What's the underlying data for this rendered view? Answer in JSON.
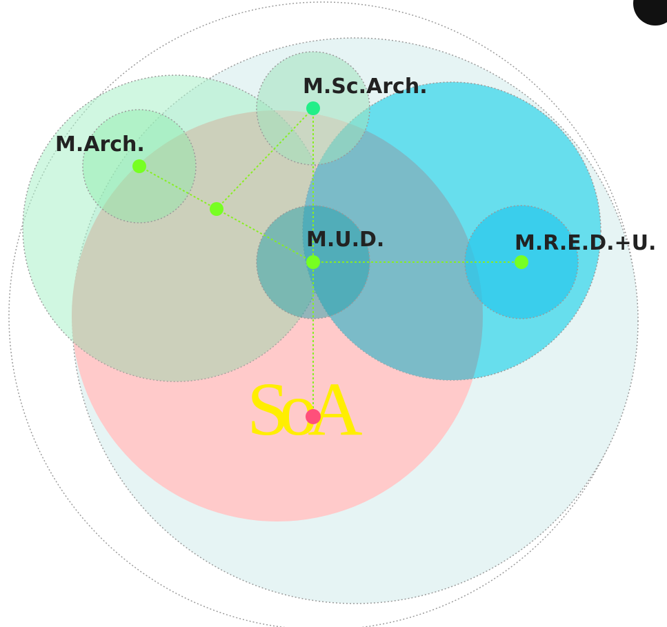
{
  "logo": "SoA",
  "nodes": [
    {
      "label": "M.Sc.Arch."
    },
    {
      "label": "M.Arch."
    },
    {
      "label": "M.U.D."
    },
    {
      "label": "M.R.E.D.+U."
    }
  ]
}
